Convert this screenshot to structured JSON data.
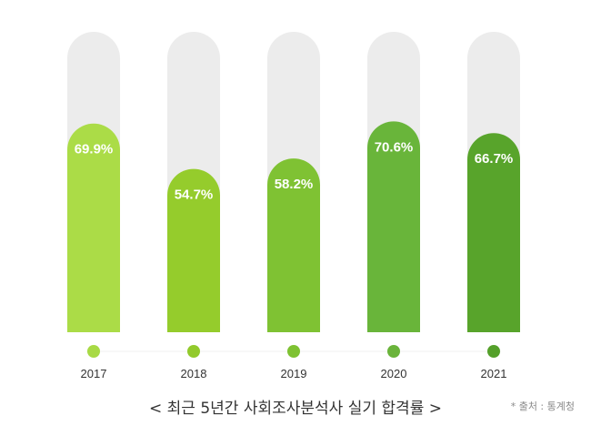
{
  "chart_data": {
    "type": "bar",
    "categories": [
      "2017",
      "2018",
      "2019",
      "2020",
      "2021"
    ],
    "values": [
      69.9,
      54.7,
      58.2,
      70.6,
      66.7
    ],
    "value_labels": [
      "69.9%",
      "54.7%",
      "58.2%",
      "70.6%",
      "66.7%"
    ],
    "ylim": [
      0,
      100
    ],
    "bar_colors": [
      "#abdc47",
      "#95cc2c",
      "#7fc233",
      "#69b53a",
      "#58a42b"
    ],
    "dot_colors": [
      "#a8da45",
      "#92ca2c",
      "#7ec232",
      "#6ab43b",
      "#54a02a"
    ],
    "track_color": "#ececec",
    "title": "< 최근 5년간 사회조사분석사 실기 합격률 >",
    "source": "* 출처 : 통계청"
  }
}
